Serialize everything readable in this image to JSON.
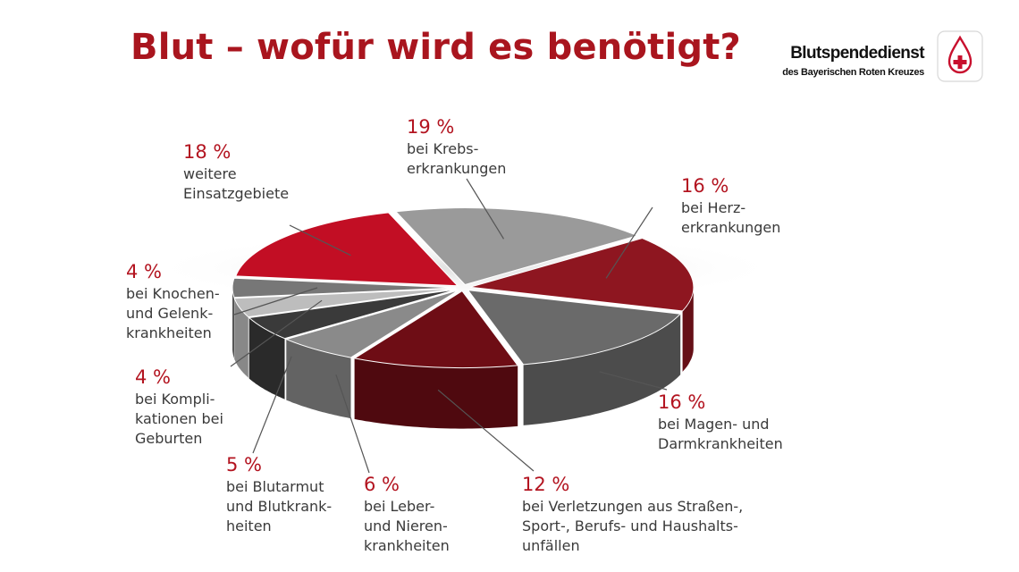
{
  "title": "Blut – wofür wird es benötigt?",
  "logo": {
    "line1": "Blutspendedienst",
    "line2": "des Bayerischen Roten Kreuzes",
    "mark": "blood-drop-red-cross-icon",
    "accent": "#c8102e"
  },
  "chart_data": {
    "type": "pie",
    "title": "Blut – wofür wird es benötigt?",
    "unit": "%",
    "slices": [
      {
        "value": 19,
        "pct": "19 %",
        "label": "bei Krebs-\nerkrankungen",
        "color": "#9a9a9a"
      },
      {
        "value": 16,
        "pct": "16 %",
        "label": "bei Herz-\nerkrankungen",
        "color": "#8e1620"
      },
      {
        "value": 16,
        "pct": "16 %",
        "label": "bei Magen- und\nDarmkrankheiten",
        "color": "#6a6a6a"
      },
      {
        "value": 12,
        "pct": "12 %",
        "label": "bei Verletzungen aus Straßen-,\nSport-, Berufs- und Haushalts-\nunfällen",
        "color": "#6e0d15"
      },
      {
        "value": 6,
        "pct": "6 %",
        "label": "bei Leber-\nund Nieren-\nkrankheiten",
        "color": "#8a8a8a"
      },
      {
        "value": 5,
        "pct": "5 %",
        "label": "bei Blutarmut\nund Blutkrank-\nheiten",
        "color": "#3a3a3a"
      },
      {
        "value": 4,
        "pct": "4 %",
        "label": "bei Kompli-\nkationen bei\nGeburten",
        "color": "#bdbdbd"
      },
      {
        "value": 4,
        "pct": "4 %",
        "label": "bei Knochen-\nund Gelenk-\nkrankheiten",
        "color": "#777777"
      },
      {
        "value": 18,
        "pct": "18 %",
        "label": "weitere\nEinsatzgebiete",
        "color": "#c20e24"
      }
    ]
  }
}
